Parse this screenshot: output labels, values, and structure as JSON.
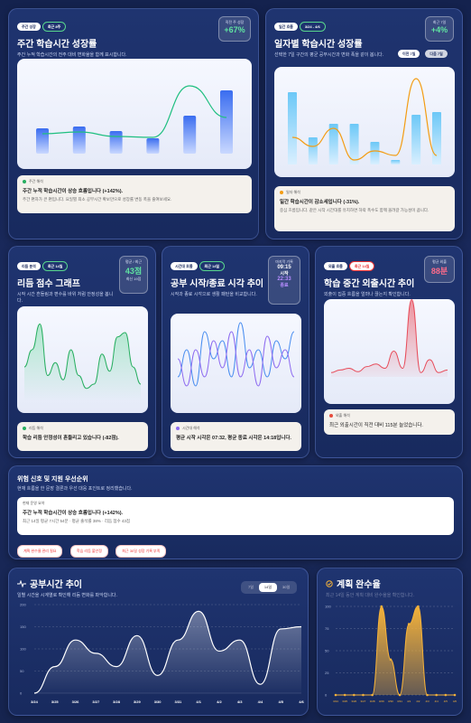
{
  "card1": {
    "tag1": "주간 성장",
    "tag2": "최근 8주",
    "title": "주간 학습시간 성장률",
    "desc": "주간 누적 학습시간의 전주 대비 변화율을 함께 표시합니다.",
    "stat_label": "직전 주 성장",
    "stat_value": "+67%",
    "note_head": "주간 해석",
    "note_main": "주간 누적 학습시간이 상승 흐름입니다 (+142%).",
    "note_sub": "주간 편차가 큰 편입니다. 요일별 최소 공부시간 확보만으로 성장률 변동 폭을 줄여보세요.",
    "chart_data": {
      "type": "bar",
      "bars": [
        28,
        30,
        25,
        17,
        42,
        70
      ],
      "line": [
        22,
        24,
        19,
        18,
        75,
        40
      ]
    }
  },
  "card2": {
    "tag1": "일간 흐름",
    "tag2": "3/24 - 4/6",
    "title": "일자별 학습시간 성장률",
    "desc": "선택한 7일 구간의 평균 공부시간과 변화 폭을 같이 봅니다.",
    "stat_label": "최근 7일",
    "stat_value": "+4%",
    "btn_a": "이전 7일",
    "btn_b": "다음 7일",
    "note_head": "일자 해석",
    "note_main": "일간 학습시간이 감소세입니다 (-31%).",
    "note_sub": "중심 흐름입니다. 같은 시작 시간대를 유지하면 하락 폭수도 함께 올려갈 가능성이 큽니다.",
    "chart_data": {
      "type": "bar",
      "bars": [
        80,
        30,
        45,
        45,
        25,
        5,
        55,
        58
      ],
      "line": [
        30,
        20,
        40,
        5,
        15,
        10,
        95,
        10
      ]
    }
  },
  "card3": {
    "tag1": "리듬 분석",
    "tag2": "최근 14일",
    "title": "리듬 점수 그래프",
    "desc": "시작 시간 흔들림과 편수를 바위 처럼 안정성을 봅니다.",
    "stat_label": "평균 / 최근",
    "stat_value": "43점",
    "stat_sub": "최신 19점",
    "note_head": "리듬 해석",
    "note_main": "학습 리듬 안정성이 흔들리고 있습니다 (-82점).",
    "chart_data": {
      "type": "line",
      "values": [
        40,
        60,
        90,
        30,
        45,
        25,
        60,
        30,
        15,
        20,
        55,
        35,
        75,
        80,
        40,
        20
      ]
    }
  },
  "card4": {
    "tag1": "시간대 흐름",
    "tag2": "최근 14일",
    "title": "공부 시작/종료 시각 추이",
    "desc": "시작과 종료 시각으로 생활 패턴을 비교합니다.",
    "stat_label": "마지막 기록",
    "stat_value1": "09:15",
    "stat_value1_lbl": "시작",
    "stat_value2": "22:33",
    "stat_value2_lbl": "종료",
    "note_head": "시간대 해석",
    "note_main": "평균 시작 시각은 07:32, 평균 종료 시각은 14:18입니다.",
    "chart_data": {
      "type": "line",
      "start": [
        30,
        60,
        20,
        80,
        50,
        70,
        30,
        90,
        40,
        60,
        30,
        70,
        50,
        80
      ],
      "end": [
        50,
        20,
        60,
        30,
        70,
        40,
        80,
        30,
        60,
        20,
        75,
        40,
        60,
        30
      ]
    }
  },
  "card5": {
    "tag1": "외출 흐름",
    "tag2": "최근 14일",
    "title": "학습 중간 외출시간 추이",
    "desc": "외출이 집중 흐름을 얼마나 끊는지 확인합니다.",
    "stat_label": "평균 외출",
    "stat_value": "88분",
    "note_head": "외출 해석",
    "note_main": "최근 외출시간이 직전 대비 115분 늘었습니다.",
    "chart_data": {
      "type": "area",
      "values": [
        5,
        8,
        10,
        6,
        12,
        15,
        10,
        30,
        10,
        90,
        5,
        20,
        5,
        8
      ]
    }
  },
  "card6": {
    "title": "위험 신호 및 지원 우선순위",
    "desc": "현재 흐름을 한 문장 결론과 우선 대응 포인트로 정리했습니다.",
    "note_head": "현재 운영 요약",
    "note_main": "주간 누적 학습시간이 상승 흐름입니다 (+142%).",
    "note_sub": "최근 14일 평균 7시간 54분 · 평균 출석률 38% · 리듬 점수 43점",
    "pills": [
      "계획 완수율 관리 필요",
      "학습 리듬 불안정",
      "최근 30일 성장 기록 부족"
    ]
  },
  "card7": {
    "title": "공부시간 추이",
    "desc": "일별 시간을 시계열로 확인해 리듬 변화를 파악합니다.",
    "seg": [
      "7일",
      "14일",
      "30일"
    ],
    "active_seg": "14일",
    "chart_data": {
      "type": "area",
      "x": [
        "3/24",
        "3/25",
        "3/26",
        "3/27",
        "3/28",
        "3/29",
        "3/30",
        "3/31",
        "4/1",
        "4/2",
        "4/3",
        "4/4",
        "4/5",
        "4/6"
      ],
      "y": [
        0,
        60,
        120,
        90,
        60,
        130,
        40,
        120,
        185,
        95,
        120,
        20,
        145,
        150
      ],
      "yticks": [
        0,
        50,
        100,
        150,
        200
      ],
      "ylim": [
        0,
        200
      ]
    }
  },
  "card8": {
    "title": "계획 완수율",
    "desc": "최근 14일 동안 계획 대비 완수율을 확인합니다.",
    "chart_data": {
      "type": "area",
      "x": [
        "3/24",
        "3/25",
        "3/26",
        "3/27",
        "3/28",
        "3/29",
        "3/30",
        "3/31",
        "4/1",
        "4/2",
        "4/3",
        "4/4",
        "4/5",
        "4/6"
      ],
      "y": [
        0,
        0,
        0,
        0,
        0,
        100,
        40,
        0,
        80,
        100,
        0,
        0,
        0,
        0
      ],
      "yticks": [
        0,
        25,
        50,
        75,
        100
      ],
      "ylim": [
        0,
        100
      ]
    }
  }
}
